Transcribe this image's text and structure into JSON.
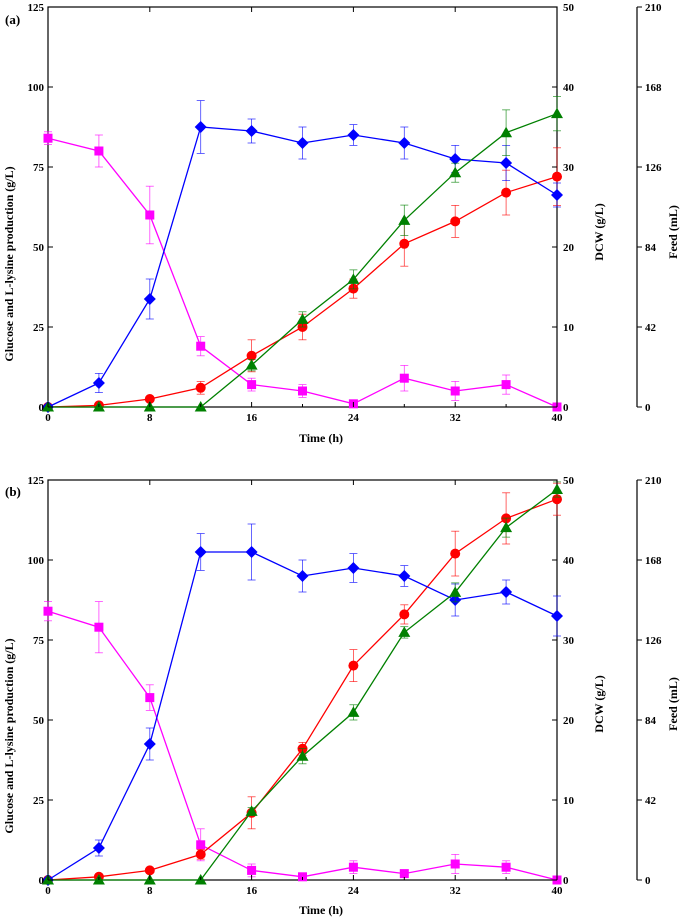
{
  "chart_data": [
    {
      "type": "line",
      "panel_label": "(a)",
      "xlabel": "Time (h)",
      "ylabel": "Glucose and L-lysine production (g/L)",
      "y2label": "DCW (g/L)",
      "y3label": "Feed (mL)",
      "xlim": [
        0,
        40
      ],
      "ylim": [
        0,
        125
      ],
      "y2lim": [
        0,
        50
      ],
      "y3lim": [
        0,
        210
      ],
      "x_ticks": [
        "0",
        "8",
        "16",
        "24",
        "32",
        "40"
      ],
      "y_ticks": [
        "0",
        "25",
        "50",
        "75",
        "100",
        "125"
      ],
      "y2_ticks": [
        "0",
        "10",
        "20",
        "30",
        "40",
        "50"
      ],
      "y3_ticks": [
        "0",
        "42",
        "84",
        "126",
        "168",
        "210"
      ],
      "series": [
        {
          "name": "Glucose",
          "axis": "left",
          "color": "#ff00ff",
          "marker": "square",
          "x": [
            0,
            4,
            8,
            12,
            16,
            20,
            24,
            28,
            32,
            36,
            40
          ],
          "values": [
            84,
            80,
            60,
            19,
            7,
            5,
            1,
            9,
            5,
            7,
            0
          ],
          "errors": [
            2,
            5,
            9,
            3,
            2,
            2,
            1,
            4,
            3,
            3,
            0
          ]
        },
        {
          "name": "L-lysine",
          "axis": "left",
          "color": "#ff0000",
          "marker": "circle",
          "x": [
            0,
            4,
            8,
            12,
            16,
            20,
            24,
            28,
            32,
            36,
            40
          ],
          "values": [
            0,
            0.5,
            2.5,
            6,
            16,
            25,
            37,
            51,
            58,
            67,
            72
          ],
          "errors": [
            0,
            0.3,
            0.8,
            2,
            5,
            4,
            3,
            7,
            5,
            7,
            9
          ]
        },
        {
          "name": "DCW",
          "axis": "right",
          "color": "#0000ff",
          "marker": "diamond",
          "x": [
            0,
            4,
            8,
            12,
            16,
            20,
            24,
            28,
            32,
            36,
            40
          ],
          "values": [
            0,
            3,
            13.5,
            35,
            34.5,
            33,
            34,
            33,
            31,
            30.5,
            26.5
          ],
          "errors": [
            0,
            1.2,
            2.5,
            3.3,
            1.5,
            2,
            1.3,
            2,
            1.7,
            2.2,
            1.5
          ]
        },
        {
          "name": "Feed",
          "axis": "right2",
          "color": "#008000",
          "marker": "triangle",
          "x": [
            0,
            4,
            8,
            12,
            16,
            20,
            24,
            28,
            32,
            36,
            40
          ],
          "values": [
            0,
            0,
            0,
            0,
            22,
            46,
            67,
            98,
            123,
            144,
            154
          ],
          "errors": [
            0,
            0,
            0,
            0,
            3,
            4,
            5,
            8,
            5,
            12,
            9
          ]
        }
      ]
    },
    {
      "type": "line",
      "panel_label": "(b)",
      "xlabel": "Time (h)",
      "ylabel": "Glucose and L-lysine production (g/L)",
      "y2label": "DCW (g/L)",
      "y3label": "Feed (mL)",
      "xlim": [
        0,
        40
      ],
      "ylim": [
        0,
        125
      ],
      "y2lim": [
        0,
        50
      ],
      "y3lim": [
        0,
        210
      ],
      "x_ticks": [
        "0",
        "8",
        "16",
        "24",
        "32",
        "40"
      ],
      "y_ticks": [
        "0",
        "25",
        "50",
        "75",
        "100",
        "125"
      ],
      "y2_ticks": [
        "0",
        "10",
        "20",
        "30",
        "40",
        "50"
      ],
      "y3_ticks": [
        "0",
        "42",
        "84",
        "126",
        "168",
        "210"
      ],
      "series": [
        {
          "name": "Glucose",
          "axis": "left",
          "color": "#ff00ff",
          "marker": "square",
          "x": [
            0,
            4,
            8,
            12,
            16,
            20,
            24,
            28,
            32,
            36,
            40
          ],
          "values": [
            84,
            79,
            57,
            11,
            3,
            1,
            4,
            2,
            5,
            4,
            0
          ],
          "errors": [
            3,
            8,
            4,
            5,
            2,
            1,
            2,
            1,
            3,
            2,
            0
          ]
        },
        {
          "name": "L-lysine",
          "axis": "left",
          "color": "#ff0000",
          "marker": "circle",
          "x": [
            0,
            4,
            8,
            12,
            16,
            20,
            24,
            28,
            32,
            36,
            40
          ],
          "values": [
            0,
            1,
            3,
            8,
            21,
            41,
            67,
            83,
            102,
            113,
            119
          ],
          "errors": [
            0,
            0.4,
            0.6,
            1.5,
            5,
            2,
            5,
            3,
            7,
            8,
            5
          ]
        },
        {
          "name": "DCW",
          "axis": "right",
          "color": "#0000ff",
          "marker": "diamond",
          "x": [
            0,
            4,
            8,
            12,
            16,
            20,
            24,
            28,
            32,
            36,
            40
          ],
          "values": [
            0,
            4,
            17,
            41,
            41,
            38,
            39,
            38,
            35,
            36,
            33
          ],
          "errors": [
            0,
            1,
            2,
            2.3,
            3.5,
            2,
            1.8,
            1.3,
            2,
            1.5,
            2.5
          ]
        },
        {
          "name": "Feed",
          "axis": "right2",
          "color": "#008000",
          "marker": "triangle",
          "x": [
            0,
            4,
            8,
            12,
            16,
            20,
            24,
            28,
            32,
            36,
            40
          ],
          "values": [
            0,
            0,
            0,
            0,
            36,
            65,
            88,
            130,
            151,
            185,
            205
          ],
          "errors": [
            0,
            0,
            0,
            0,
            2,
            4,
            4,
            3,
            5,
            5,
            4
          ]
        }
      ]
    }
  ]
}
